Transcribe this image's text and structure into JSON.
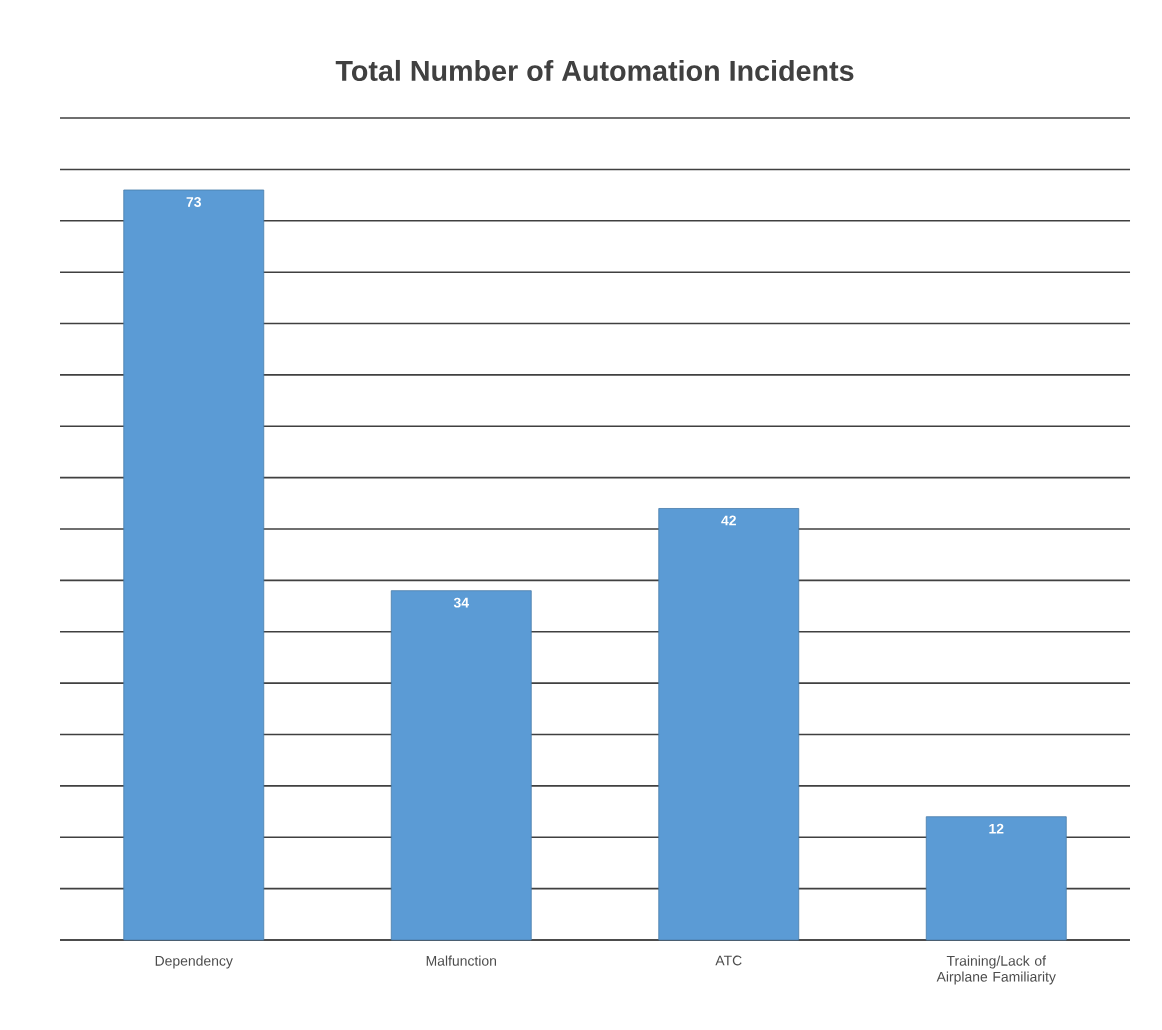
{
  "chart_data": {
    "type": "bar",
    "title": "Total Number of Automation Incidents",
    "categories": [
      "Dependency",
      "Malfunction",
      "ATC",
      "Training/Lack of Airplane Familiarity"
    ],
    "values": [
      73,
      34,
      42,
      12
    ],
    "color": "#5b9bd5",
    "grid": "y",
    "data_labels": true
  }
}
